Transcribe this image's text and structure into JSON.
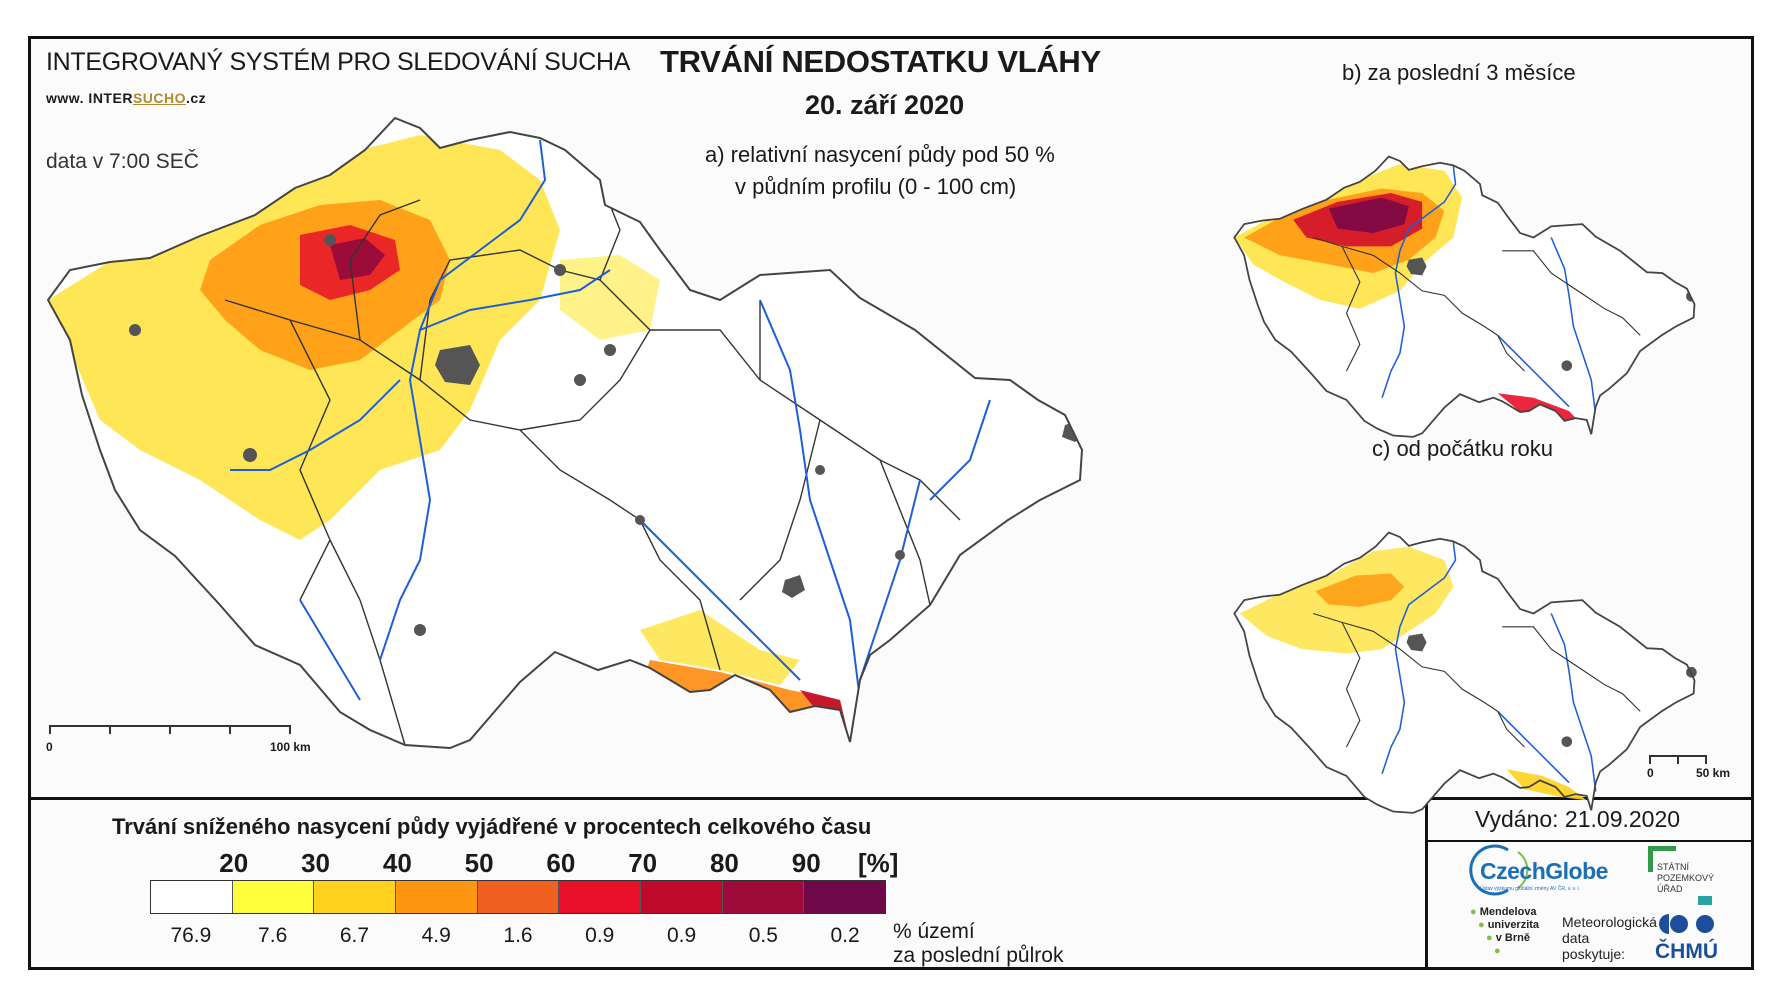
{
  "header": {
    "system_name": "INTEGROVANÝ SYSTÉM PRO SLEDOVÁNÍ SUCHA",
    "website_prefix": "www. INTER",
    "website_highlight": "SUCHO",
    "website_suffix": ".cz",
    "data_time": "data v 7:00 SEČ",
    "title": "TRVÁNÍ NEDOSTATKU VLÁHY",
    "date": "20. září 2020"
  },
  "panels": {
    "a_line1": "a) relativní nasycení půdy pod 50 %",
    "a_line2": "v půdním profilu (0 - 100 cm)",
    "b": "b) za poslední 3 měsíce",
    "c": "c) od počátku roku"
  },
  "scale_bars": {
    "main_zero": "0",
    "main_end": "100 km",
    "small_zero": "0",
    "small_end": "50 km"
  },
  "legend": {
    "title": "Trvání sníženého nasycení půdy vyjádřené v procentech celkového času",
    "thresholds": [
      "20",
      "30",
      "40",
      "50",
      "60",
      "70",
      "80",
      "90"
    ],
    "unit": "[%]",
    "colors": [
      "#ffffff",
      "#ffff3c",
      "#ffd21e",
      "#ff9612",
      "#f06020",
      "#e8102a",
      "#c00a2c",
      "#9e0a3a",
      "#6e0848"
    ],
    "area_shares": [
      "76.9",
      "7.6",
      "6.7",
      "4.9",
      "1.6",
      "0.9",
      "0.9",
      "0.5",
      "0.2"
    ],
    "share_label_1": "% území",
    "share_label_2": "za poslední půlrok"
  },
  "footer": {
    "issued": "Vydáno: 21.09.2020",
    "czechglobe": "CzechGlobe",
    "czechglobe_sub": "Ústav výzkumu globální změny AV ČR, v. v. i.",
    "spu_1": "STÁTNÍ",
    "spu_2": "POZEMKOVÝ",
    "spu_3": "ÚŘAD",
    "mendel_1": "Mendelova",
    "mendel_2": "univerzita",
    "mendel_3": "v Brně",
    "meteo_1": "Meteorologická",
    "meteo_2": "data",
    "meteo_3": "poskytuje:",
    "chmu": "ČHMÚ"
  },
  "map_style": {
    "background": "#ffffff",
    "border_color": "#333333",
    "river_color": "#1f5fd6",
    "city_color": "#555555"
  }
}
